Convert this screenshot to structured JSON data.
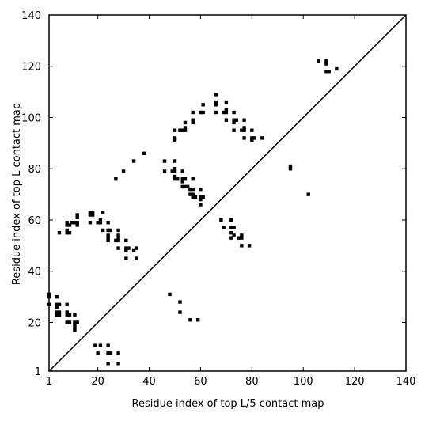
{
  "chart_data": {
    "type": "scatter",
    "title": "",
    "xlabel": "Residue index of top L/5 contact map",
    "ylabel": "Residue index of top L contact map",
    "xlim": [
      1,
      140
    ],
    "ylim": [
      1,
      140
    ],
    "xticks": [
      1,
      20,
      40,
      60,
      80,
      100,
      120,
      140
    ],
    "yticks": [
      1,
      20,
      40,
      60,
      80,
      100,
      120,
      140
    ],
    "grid": false,
    "diagonal": true,
    "marker_color": "#000000",
    "points": [
      [
        1,
        31
      ],
      [
        1,
        30
      ],
      [
        1,
        27
      ],
      [
        4,
        30
      ],
      [
        4,
        27
      ],
      [
        5,
        27
      ],
      [
        4,
        26
      ],
      [
        4,
        24
      ],
      [
        5,
        24
      ],
      [
        4,
        23
      ],
      [
        5,
        23
      ],
      [
        8,
        27
      ],
      [
        8,
        24
      ],
      [
        8,
        23
      ],
      [
        9,
        23
      ],
      [
        11,
        23
      ],
      [
        8,
        20
      ],
      [
        9,
        20
      ],
      [
        11,
        20
      ],
      [
        12,
        20
      ],
      [
        11,
        19
      ],
      [
        11,
        18
      ],
      [
        11,
        17
      ],
      [
        19,
        11
      ],
      [
        21,
        11
      ],
      [
        24,
        11
      ],
      [
        20,
        8
      ],
      [
        24,
        8
      ],
      [
        25,
        8
      ],
      [
        28,
        8
      ],
      [
        24,
        4
      ],
      [
        28,
        4
      ],
      [
        5,
        55
      ],
      [
        8,
        55
      ],
      [
        9,
        55
      ],
      [
        8,
        56
      ],
      [
        8,
        58
      ],
      [
        9,
        58
      ],
      [
        10,
        59
      ],
      [
        11,
        59
      ],
      [
        12,
        59
      ],
      [
        12,
        58
      ],
      [
        8,
        59
      ],
      [
        12,
        61
      ],
      [
        12,
        62
      ],
      [
        17,
        62
      ],
      [
        18,
        62
      ],
      [
        18,
        63
      ],
      [
        17,
        63
      ],
      [
        17,
        59
      ],
      [
        20,
        59
      ],
      [
        21,
        59
      ],
      [
        21,
        60
      ],
      [
        22,
        56
      ],
      [
        24,
        56
      ],
      [
        25,
        56
      ],
      [
        24,
        54
      ],
      [
        24,
        53
      ],
      [
        24,
        52
      ],
      [
        27,
        52
      ],
      [
        28,
        52
      ],
      [
        28,
        53
      ],
      [
        28,
        54
      ],
      [
        28,
        56
      ],
      [
        28,
        49
      ],
      [
        31,
        49
      ],
      [
        32,
        49
      ],
      [
        31,
        48
      ],
      [
        34,
        48
      ],
      [
        35,
        49
      ],
      [
        31,
        45
      ],
      [
        35,
        45
      ],
      [
        31,
        52
      ],
      [
        22,
        63
      ],
      [
        24,
        59
      ],
      [
        27,
        76
      ],
      [
        30,
        79
      ],
      [
        34,
        83
      ],
      [
        38,
        86
      ],
      [
        46,
        83
      ],
      [
        46,
        79
      ],
      [
        49,
        79
      ],
      [
        50,
        79
      ],
      [
        50,
        80
      ],
      [
        50,
        83
      ],
      [
        50,
        77
      ],
      [
        50,
        76
      ],
      [
        51,
        76
      ],
      [
        53,
        76
      ],
      [
        54,
        76
      ],
      [
        53,
        79
      ],
      [
        53,
        75
      ],
      [
        53,
        73
      ],
      [
        54,
        73
      ],
      [
        55,
        73
      ],
      [
        56,
        72
      ],
      [
        57,
        72
      ],
      [
        57,
        76
      ],
      [
        56,
        70
      ],
      [
        57,
        70
      ],
      [
        58,
        69
      ],
      [
        60,
        69
      ],
      [
        60,
        68
      ],
      [
        61,
        69
      ],
      [
        60,
        66
      ],
      [
        60,
        72
      ],
      [
        57,
        69
      ],
      [
        50,
        95
      ],
      [
        50,
        92
      ],
      [
        50,
        91
      ],
      [
        52,
        95
      ],
      [
        53,
        95
      ],
      [
        54,
        95
      ],
      [
        54,
        96
      ],
      [
        54,
        98
      ],
      [
        57,
        98
      ],
      [
        57,
        99
      ],
      [
        57,
        102
      ],
      [
        60,
        102
      ],
      [
        61,
        102
      ],
      [
        61,
        105
      ],
      [
        66,
        102
      ],
      [
        66,
        105
      ],
      [
        66,
        106
      ],
      [
        66,
        109
      ],
      [
        70,
        106
      ],
      [
        70,
        103
      ],
      [
        70,
        102
      ],
      [
        69,
        102
      ],
      [
        70,
        99
      ],
      [
        73,
        99
      ],
      [
        73,
        98
      ],
      [
        74,
        99
      ],
      [
        73,
        102
      ],
      [
        73,
        95
      ],
      [
        77,
        95
      ],
      [
        77,
        96
      ],
      [
        77,
        99
      ],
      [
        76,
        95
      ],
      [
        77,
        92
      ],
      [
        80,
        92
      ],
      [
        80,
        91
      ],
      [
        80,
        95
      ],
      [
        81,
        92
      ],
      [
        84,
        92
      ],
      [
        68,
        60
      ],
      [
        69,
        57
      ],
      [
        72,
        60
      ],
      [
        72,
        57
      ],
      [
        73,
        57
      ],
      [
        72,
        55
      ],
      [
        72,
        53
      ],
      [
        73,
        54
      ],
      [
        75,
        53
      ],
      [
        76,
        53
      ],
      [
        76,
        54
      ],
      [
        76,
        50
      ],
      [
        79,
        50
      ],
      [
        48,
        31
      ],
      [
        52,
        28
      ],
      [
        52,
        24
      ],
      [
        56,
        21
      ],
      [
        59,
        21
      ],
      [
        95,
        80
      ],
      [
        95,
        81
      ],
      [
        102,
        70
      ],
      [
        106,
        122
      ],
      [
        109,
        122
      ],
      [
        109,
        121
      ],
      [
        109,
        118
      ],
      [
        110,
        118
      ],
      [
        113,
        119
      ]
    ]
  }
}
